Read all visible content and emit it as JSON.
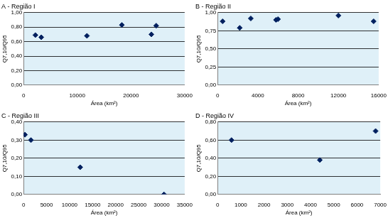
{
  "chart_data": [
    {
      "type": "scatter",
      "title": "A - Região I",
      "x_label": "Área (km²)",
      "y_label": "Q7,10/Q95",
      "x": [
        2200,
        3300,
        11800,
        18300,
        23800,
        24700
      ],
      "values": [
        0.69,
        0.66,
        0.68,
        0.83,
        0.7,
        0.82
      ],
      "color": "#00205f",
      "marker": "diamond",
      "grid": true,
      "xlim": [
        0,
        30000
      ],
      "xticks": [
        0,
        10000,
        20000,
        30000
      ],
      "ylim": [
        0,
        1
      ],
      "yticks": [
        {
          "value": 0,
          "label": "0,00"
        },
        {
          "value": 0.2,
          "label": "0,20"
        },
        {
          "value": 0.4,
          "label": "0,40"
        },
        {
          "value": 0.6,
          "label": "0,60"
        },
        {
          "value": 0.8,
          "label": "0,80"
        },
        {
          "value": 1,
          "label": "1,00"
        }
      ]
    },
    {
      "type": "scatter",
      "title": "B - Região II",
      "x_label": "Área (km²)",
      "y_label": "Q7,10/Q95",
      "x": [
        500,
        2200,
        3300,
        5800,
        6000,
        12000,
        15500
      ],
      "values": [
        0.88,
        0.79,
        0.92,
        0.9,
        0.91,
        0.96,
        0.88
      ],
      "color": "#00205f",
      "marker": "diamond",
      "grid": true,
      "xlim": [
        0,
        16000
      ],
      "xticks": [
        0,
        4000,
        8000,
        12000,
        16000
      ],
      "ylim": [
        0,
        1
      ],
      "yticks": [
        {
          "value": 0,
          "label": "0,00"
        },
        {
          "value": 0.25,
          "label": "0,25"
        },
        {
          "value": 0.5,
          "label": "0,50"
        },
        {
          "value": 0.75,
          "label": "0,75"
        },
        {
          "value": 1,
          "label": "1,00"
        }
      ]
    },
    {
      "type": "scatter",
      "title": "C - Região III",
      "x_label": "Área (km²)",
      "y_label": "Q7,10/Q95",
      "x": [
        300,
        1600,
        12300,
        30500
      ],
      "values": [
        0.33,
        0.3,
        0.15,
        0.0
      ],
      "color": "#00205f",
      "marker": "diamond",
      "grid": true,
      "xlim": [
        0,
        35000
      ],
      "xticks": [
        0,
        5000,
        10000,
        15000,
        20000,
        25000,
        30000,
        35000
      ],
      "ylim": [
        0,
        0.4
      ],
      "yticks": [
        {
          "value": 0,
          "label": "0,00"
        },
        {
          "value": 0.1,
          "label": "0,10"
        },
        {
          "value": 0.2,
          "label": "0,20"
        },
        {
          "value": 0.3,
          "label": "0,30"
        },
        {
          "value": 0.4,
          "label": "0,40"
        }
      ]
    },
    {
      "type": "scatter",
      "title": "D - Região IV",
      "x_label": "Área (km²)",
      "y_label": "Q7,10/Q95",
      "x": [
        600,
        4400,
        6800
      ],
      "values": [
        0.6,
        0.38,
        0.7
      ],
      "color": "#00205f",
      "marker": "diamond",
      "grid": true,
      "xlim": [
        0,
        7000
      ],
      "xticks": [
        0,
        1000,
        2000,
        3000,
        4000,
        5000,
        6000,
        7000
      ],
      "ylim": [
        0,
        0.8
      ],
      "yticks": [
        {
          "value": 0,
          "label": "0,00"
        },
        {
          "value": 0.2,
          "label": "0,20"
        },
        {
          "value": 0.4,
          "label": "0,40"
        },
        {
          "value": 0.6,
          "label": "0,60"
        },
        {
          "value": 0.8,
          "label": "0,80"
        }
      ]
    }
  ]
}
